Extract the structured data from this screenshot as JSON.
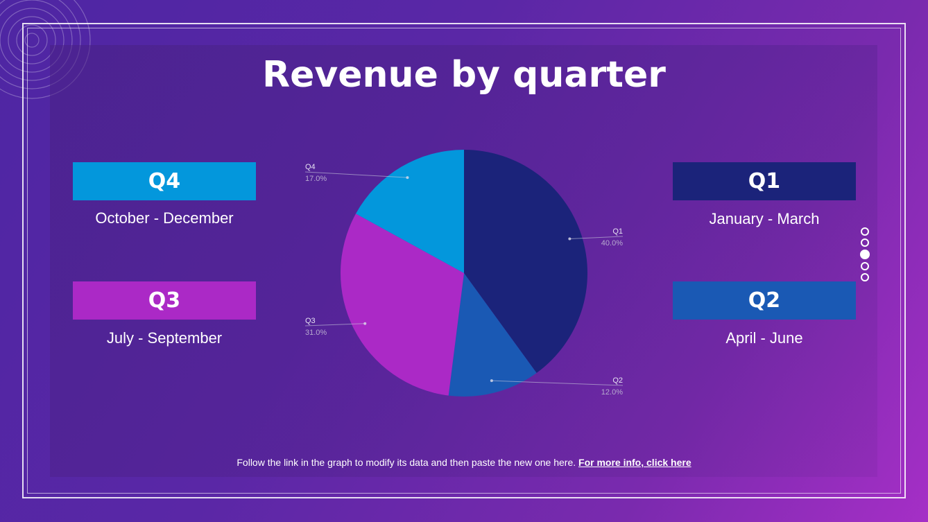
{
  "title": "Revenue by quarter",
  "quarters": {
    "q4": {
      "label": "Q4",
      "months": "October - December",
      "color": "#0397dc"
    },
    "q3": {
      "label": "Q3",
      "months": "July - September",
      "color": "#ab29c6"
    },
    "q1": {
      "label": "Q1",
      "months": "January - March",
      "color": "#1b237a"
    },
    "q2": {
      "label": "Q2",
      "months": "April - June",
      "color": "#1a59b4"
    }
  },
  "footer": {
    "text": "Follow the link in the graph to modify its data and then paste the new one here.",
    "link": "For more info, click here"
  },
  "pagination": {
    "total": 5,
    "active": 3
  },
  "chart_data": {
    "type": "pie",
    "title": "Revenue by quarter",
    "slices": [
      {
        "name": "Q1",
        "value": 40.0,
        "label": "40.0%",
        "color": "#1b237a"
      },
      {
        "name": "Q2",
        "value": 12.0,
        "label": "12.0%",
        "color": "#1a59b4"
      },
      {
        "name": "Q3",
        "value": 31.0,
        "label": "31.0%",
        "color": "#ab29c6"
      },
      {
        "name": "Q4",
        "value": 17.0,
        "label": "17.0%",
        "color": "#0397dc"
      }
    ],
    "start_angle": "top (12 o'clock)",
    "direction": "clockwise"
  }
}
